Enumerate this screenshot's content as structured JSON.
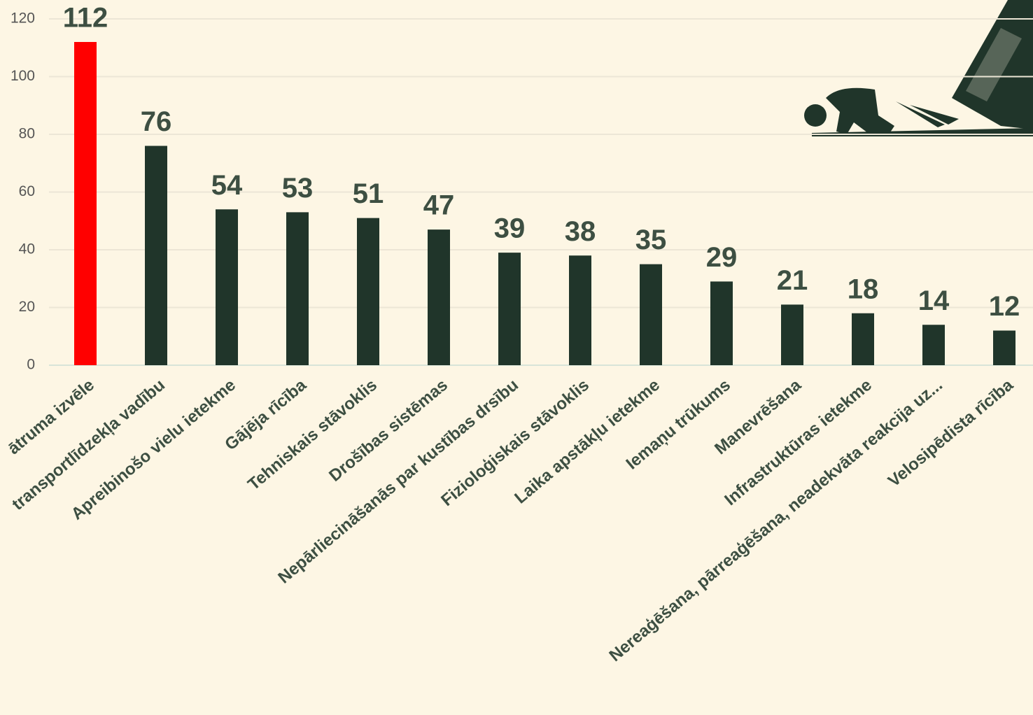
{
  "chart_data": {
    "type": "bar",
    "categories": [
      "ātruma izvēle",
      "transportlīdzekļa vadību",
      "Apreibinošo vielu ietekme",
      "Gājēja rīcība",
      "Tehniskais stāvoklis",
      "Drošības sistēmas",
      "Nepārliecināšanās par kustības drsību",
      "Fizioloģiskais stāvoklis",
      "Laika apstākļu ietekme",
      "Iemaņu trūkums",
      "Manevrēšana",
      "Infrastruktūras ietekme",
      "Nereaģēšana, pārreaģēšana, neadekvāta reakcija uz...",
      "Velosipēdista rīcība"
    ],
    "values": [
      112,
      76,
      54,
      53,
      51,
      47,
      39,
      38,
      35,
      29,
      21,
      18,
      14,
      12
    ],
    "colors": [
      "#ff0000",
      "#20352a",
      "#20352a",
      "#20352a",
      "#20352a",
      "#20352a",
      "#20352a",
      "#20352a",
      "#20352a",
      "#20352a",
      "#20352a",
      "#20352a",
      "#20352a",
      "#20352a"
    ],
    "ylim": [
      0,
      120
    ],
    "yticks": [
      0,
      20,
      40,
      60,
      80,
      100,
      120
    ],
    "grid": true
  }
}
